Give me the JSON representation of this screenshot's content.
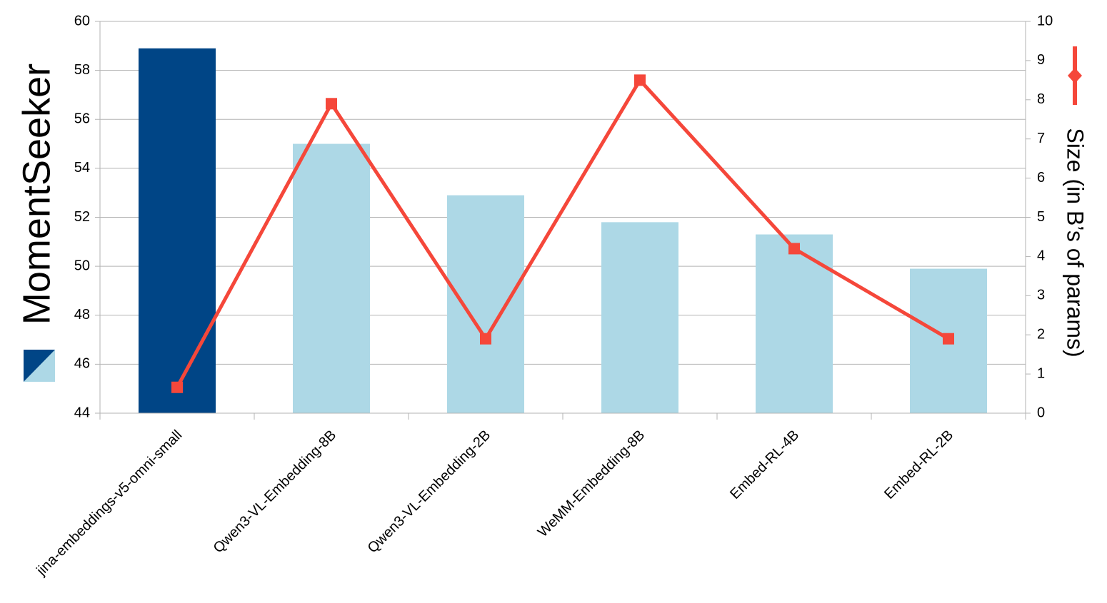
{
  "chart_data": {
    "type": "bar-line",
    "categories": [
      "jina-embeddings-v5-omni-small",
      "Qwen3-VL-Embedding-8B",
      "Qwen3-VL-Embedding-2B",
      "WeMM-Embedding-8B",
      "Embed-RL-4B",
      "Embed-RL-2B"
    ],
    "series": [
      {
        "name": "MomentSeeker",
        "type": "bar",
        "colors": [
          "#004586",
          "#add8e6",
          "#add8e6",
          "#add8e6",
          "#add8e6",
          "#add8e6"
        ],
        "values": [
          58.9,
          55.0,
          52.9,
          51.8,
          51.3,
          49.9
        ]
      },
      {
        "name": "Size (in B’s of params)",
        "type": "line",
        "axis": "y2",
        "color": "#f5473a",
        "values": [
          0.66,
          7.9,
          1.9,
          8.5,
          4.2,
          1.9
        ]
      }
    ],
    "ylim": [
      44,
      60
    ],
    "yticks": [
      44,
      46,
      48,
      50,
      52,
      54,
      56,
      58,
      60
    ],
    "y2lim": [
      0,
      10
    ],
    "y2ticks": [
      0,
      1,
      2,
      3,
      4,
      5,
      6,
      7,
      8,
      9,
      10
    ],
    "grid": true
  }
}
